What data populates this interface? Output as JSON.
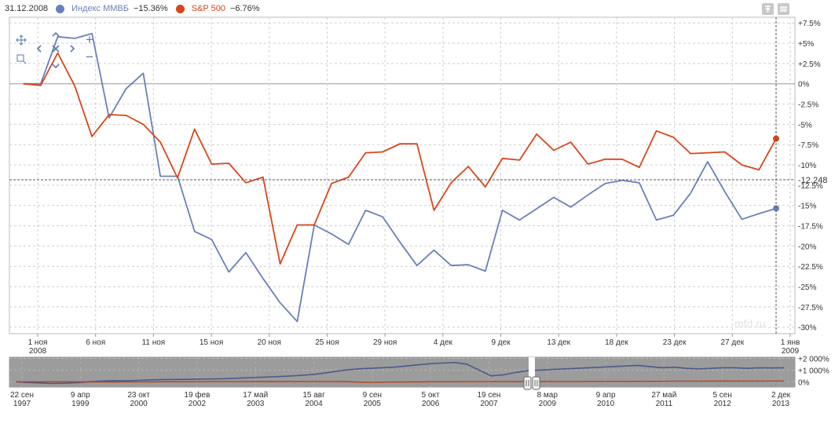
{
  "legend": {
    "date": "31.12.2008",
    "items": [
      {
        "name": "Индекс ММВБ",
        "value": "−15.36%",
        "color": "#6a80b8"
      },
      {
        "name": "S&P 500",
        "value": "−6.76%",
        "color": "#d8461b"
      }
    ]
  },
  "watermark": "mfd.ru",
  "crosshair_label": "-12.248",
  "nav_controls": {
    "plus": "+",
    "minus": "−",
    "close": "×",
    "left": "‹",
    "right": "›",
    "up": "ˆ",
    "down": "ˇ"
  },
  "chart_data": [
    {
      "type": "line",
      "title": "",
      "x": [
        "30.10.2008",
        "31.10.2008",
        "03.11.2008",
        "04.11.2008",
        "05.11.2008",
        "06.11.2008",
        "07.11.2008",
        "10.11.2008",
        "11.11.2008",
        "12.11.2008",
        "13.11.2008",
        "14.11.2008",
        "17.11.2008",
        "18.11.2008",
        "19.11.2008",
        "20.11.2008",
        "21.11.2008",
        "24.11.2008",
        "25.11.2008",
        "26.11.2008",
        "27.11.2008",
        "28.11.2008",
        "01.12.2008",
        "02.12.2008",
        "03.12.2008",
        "04.12.2008",
        "05.12.2008",
        "08.12.2008",
        "09.12.2008",
        "10.12.2008",
        "11.12.2008",
        "12.12.2008",
        "15.12.2008",
        "16.12.2008",
        "17.12.2008",
        "18.12.2008",
        "19.12.2008",
        "22.12.2008",
        "23.12.2008",
        "24.12.2008",
        "25.12.2008",
        "26.12.2008",
        "29.12.2008",
        "30.12.2008",
        "31.12.2008"
      ],
      "x_tick_labels": [
        "1 ноя\n2008",
        "6 ноя",
        "11 ноя",
        "15 ноя",
        "20 ноя",
        "25 ноя",
        "29 ноя",
        "4 дек",
        "9 дек",
        "13 дек",
        "18 дек",
        "23 дек",
        "27 дек",
        "1 янв\n2009"
      ],
      "y_tick_labels": [
        "+7.5%",
        "+5%",
        "+2.5%",
        "0%",
        "-2.5%",
        "-5%",
        "-7.5%",
        "-10%",
        "-12.5%",
        "-15%",
        "-17.5%",
        "-20%",
        "-22.5%",
        "-25%",
        "-27.5%",
        "-30%"
      ],
      "ylim": [
        -30.8,
        8.2
      ],
      "grid": true,
      "legend_position": "top-left",
      "series": [
        {
          "name": "Индекс ММВБ",
          "color": "#6a80b8",
          "values": [
            0,
            0,
            5.8,
            5.6,
            6.2,
            -4.2,
            -0.6,
            1.3,
            -11.4,
            -11.4,
            -18.2,
            -19.2,
            -23.2,
            -20.8,
            -24,
            -27,
            -29.3,
            -17.4,
            -18.5,
            -19.8,
            -15.6,
            -16.4,
            -19.5,
            -22.4,
            -20.5,
            -22.4,
            -22.3,
            -23.1,
            -15.6,
            -16.8,
            -15.4,
            -14,
            -15.2,
            -13.7,
            -12.3,
            -11.9,
            -12.2,
            -16.8,
            -16.2,
            -13.5,
            -9.6,
            -13.3,
            -16.7,
            -16,
            -15.36
          ]
        },
        {
          "name": "S&P 500",
          "color": "#d8461b",
          "values": [
            0,
            -0.2,
            3.8,
            -0.3,
            -6.5,
            -3.8,
            -3.9,
            -5.0,
            -7.2,
            -11.6,
            -5.6,
            -9.9,
            -9.8,
            -12.2,
            -11.5,
            -22.2,
            -17.4,
            -17.4,
            -12.3,
            -11.5,
            -8.5,
            -8.4,
            -7.4,
            -7.4,
            -15.6,
            -12.2,
            -10.2,
            -12.7,
            -9.2,
            -9.4,
            -6.2,
            -8.2,
            -7.2,
            -9.9,
            -9.3,
            -9.3,
            -10.3,
            -5.8,
            -6.6,
            -8.6,
            -8.5,
            -8.4,
            -10.0,
            -10.6,
            -6.76
          ]
        }
      ]
    },
    {
      "type": "area",
      "title": "",
      "x_tick_labels": [
        "22 сен\n1997",
        "9 апр\n1999",
        "23 окт\n2000",
        "19 фев\n2002",
        "17 май\n2003",
        "15 авг\n2004",
        "9 сен\n2005",
        "5 окт\n2006",
        "19 сен\n2007",
        "8 мар\n2009",
        "9 апр\n2010",
        "27 май\n2011",
        "5 сен\n2012",
        "2 дек\n2013"
      ],
      "y_tick_labels": [
        "+2 000%",
        "+1 000%",
        "0%"
      ],
      "ylim": [
        -450,
        2100
      ],
      "selected_range": [
        "30.10.2008",
        "31.12.2008"
      ],
      "series": [
        {
          "name": "Индекс ММВБ",
          "color": "#4a5a8a",
          "values": [
            0,
            -60,
            -100,
            -140,
            -120,
            -80,
            0,
            60,
            100,
            80,
            120,
            160,
            180,
            200,
            210,
            230,
            240,
            260,
            300,
            340,
            380,
            420,
            470,
            520,
            600,
            700,
            850,
            1000,
            1100,
            1150,
            1200,
            1250,
            1350,
            1450,
            1550,
            1600,
            1650,
            1500,
            1000,
            500,
            600,
            800,
            950,
            1000,
            1050,
            1100,
            1150,
            1200,
            1250,
            1300,
            1350,
            1400,
            1300,
            1200,
            1250,
            1150,
            1100,
            1150,
            1200,
            1200,
            1150,
            1200,
            1180,
            1200
          ]
        },
        {
          "name": "S&P 500",
          "color": "#b8401a",
          "values": [
            0,
            0,
            2,
            3,
            3,
            2,
            -5,
            -10,
            -12,
            -10,
            -8,
            -5,
            0,
            3,
            5,
            8,
            10,
            12,
            14,
            16,
            18,
            20,
            22,
            24,
            26,
            28,
            28,
            20,
            -20,
            -40,
            -30,
            -20,
            -10,
            -5,
            0,
            5,
            8,
            10,
            12,
            14,
            16,
            18,
            20,
            22,
            24,
            26,
            28,
            30,
            32,
            34,
            36,
            38,
            40,
            42,
            44,
            46,
            48,
            50,
            52,
            54,
            56,
            58,
            60,
            62
          ]
        }
      ]
    }
  ]
}
